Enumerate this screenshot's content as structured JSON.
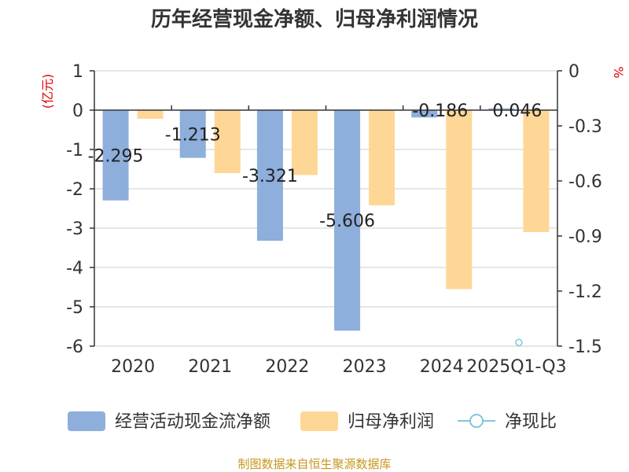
{
  "title": "历年经营现金净额、归母净利润情况",
  "source": "制图数据来自恒生聚源数据库",
  "chart_data": {
    "type": "bar",
    "title": "历年经营现金净额、归母净利润情况",
    "categories": [
      "2020",
      "2021",
      "2022",
      "2023",
      "2024",
      "2025Q1-Q3"
    ],
    "series": [
      {
        "name": "经营活动现金流净额",
        "axis": "left",
        "color": "#8eaedb",
        "values": [
          -2.295,
          -1.213,
          -3.321,
          -5.606,
          -0.186,
          0.046
        ],
        "labels": [
          "-2.295",
          "-1.213",
          "-3.321",
          "-5.606",
          "-0.186",
          "0.046"
        ]
      },
      {
        "name": "归母净利润",
        "axis": "left",
        "color": "#fed796",
        "values": [
          -0.22,
          -1.6,
          -1.65,
          -2.42,
          -4.55,
          -3.1
        ]
      },
      {
        "name": "净现比",
        "axis": "right",
        "type": "line",
        "color": "#7ec8d9",
        "values": [
          null,
          null,
          null,
          null,
          null,
          -1.48
        ]
      }
    ],
    "y_left": {
      "label": "(亿元)",
      "min": -6,
      "max": 1,
      "ticks": [
        "1",
        "0",
        "-1",
        "-2",
        "-3",
        "-4",
        "-5",
        "-6"
      ]
    },
    "y_right": {
      "label": "%",
      "min": -1.5,
      "max": 0,
      "ticks": [
        "0",
        "-0.3",
        "-0.6",
        "-0.9",
        "-1.2",
        "-1.5"
      ]
    },
    "grid": true,
    "legend_position": "bottom"
  }
}
